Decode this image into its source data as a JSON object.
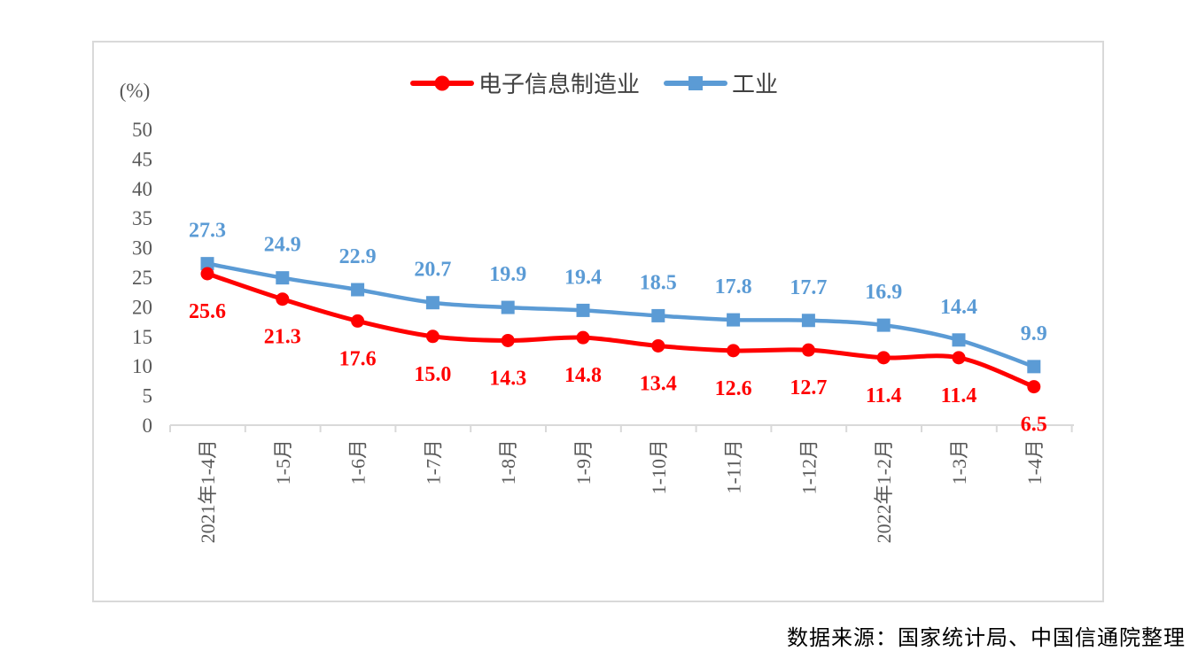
{
  "chart_data": {
    "type": "line",
    "ylabel": "(%)",
    "ylim": [
      0,
      50
    ],
    "yticks": [
      0,
      5,
      10,
      15,
      20,
      25,
      30,
      35,
      40,
      45,
      50
    ],
    "categories": [
      "2021年1-4月",
      "1-5月",
      "1-6月",
      "1-7月",
      "1-8月",
      "1-9月",
      "1-10月",
      "1-11月",
      "1-12月",
      "2022年1-2月",
      "1-3月",
      "1-4月"
    ],
    "series": [
      {
        "name": "电子信息制造业",
        "color": "#ff0000",
        "marker": "circle",
        "values": [
          25.6,
          21.3,
          17.6,
          15.0,
          14.3,
          14.8,
          13.4,
          12.6,
          12.7,
          11.4,
          11.4,
          6.5
        ],
        "labels": [
          "25.6",
          "21.3",
          "17.6",
          "15.0",
          "14.3",
          "14.8",
          "13.4",
          "12.6",
          "12.7",
          "11.4",
          "11.4",
          "6.5"
        ]
      },
      {
        "name": "工业",
        "color": "#5b9bd5",
        "marker": "square",
        "values": [
          27.3,
          24.9,
          22.9,
          20.7,
          19.9,
          19.4,
          18.5,
          17.8,
          17.7,
          16.9,
          14.4,
          9.9
        ],
        "labels": [
          "27.3",
          "24.9",
          "22.9",
          "20.7",
          "19.9",
          "19.4",
          "18.5",
          "17.8",
          "17.7",
          "16.9",
          "14.4",
          "9.9"
        ]
      }
    ],
    "legend_position": "top-center",
    "grid": false
  },
  "source_note": "数据来源：国家统计局、中国信通院整理"
}
